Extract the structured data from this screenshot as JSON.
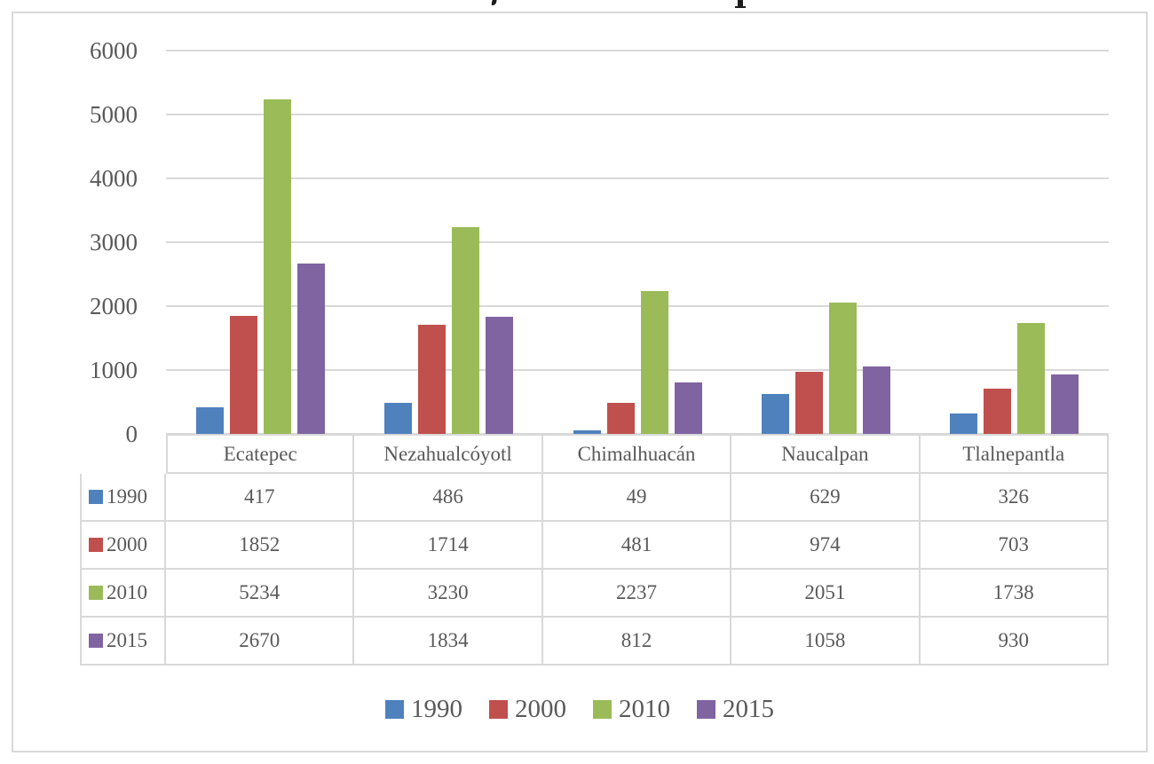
{
  "chart_data": {
    "type": "bar",
    "title": "",
    "categories": [
      "Ecatepec",
      "Nezahualcóyotl",
      "Chimalhuacán",
      "Naucalpan",
      "Tlalnepantla"
    ],
    "series": [
      {
        "name": "1990",
        "color": "#4F81BD",
        "values": [
          417,
          486,
          49,
          629,
          326
        ]
      },
      {
        "name": "2000",
        "color": "#C0504D",
        "values": [
          1852,
          1714,
          481,
          974,
          703
        ]
      },
      {
        "name": "2010",
        "color": "#9BBB59",
        "values": [
          5234,
          3230,
          2237,
          2051,
          1738
        ]
      },
      {
        "name": "2015",
        "color": "#8064A2",
        "values": [
          2670,
          1834,
          812,
          1058,
          930
        ]
      }
    ],
    "y_axis": {
      "min": 0,
      "max": 6000,
      "step": 1000,
      "tick_labels": [
        "0",
        "1000",
        "2000",
        "3000",
        "4000",
        "5000",
        "6000"
      ]
    },
    "xlabel": "",
    "ylabel": "",
    "grid": true,
    "legend_position": "bottom",
    "data_table_shown": true
  },
  "colors": {
    "gridline": "#D9D9D9",
    "frame_border": "#D9D9D9",
    "table_border": "#D9D9D9",
    "text": "#595959",
    "background": "#FFFFFF"
  }
}
